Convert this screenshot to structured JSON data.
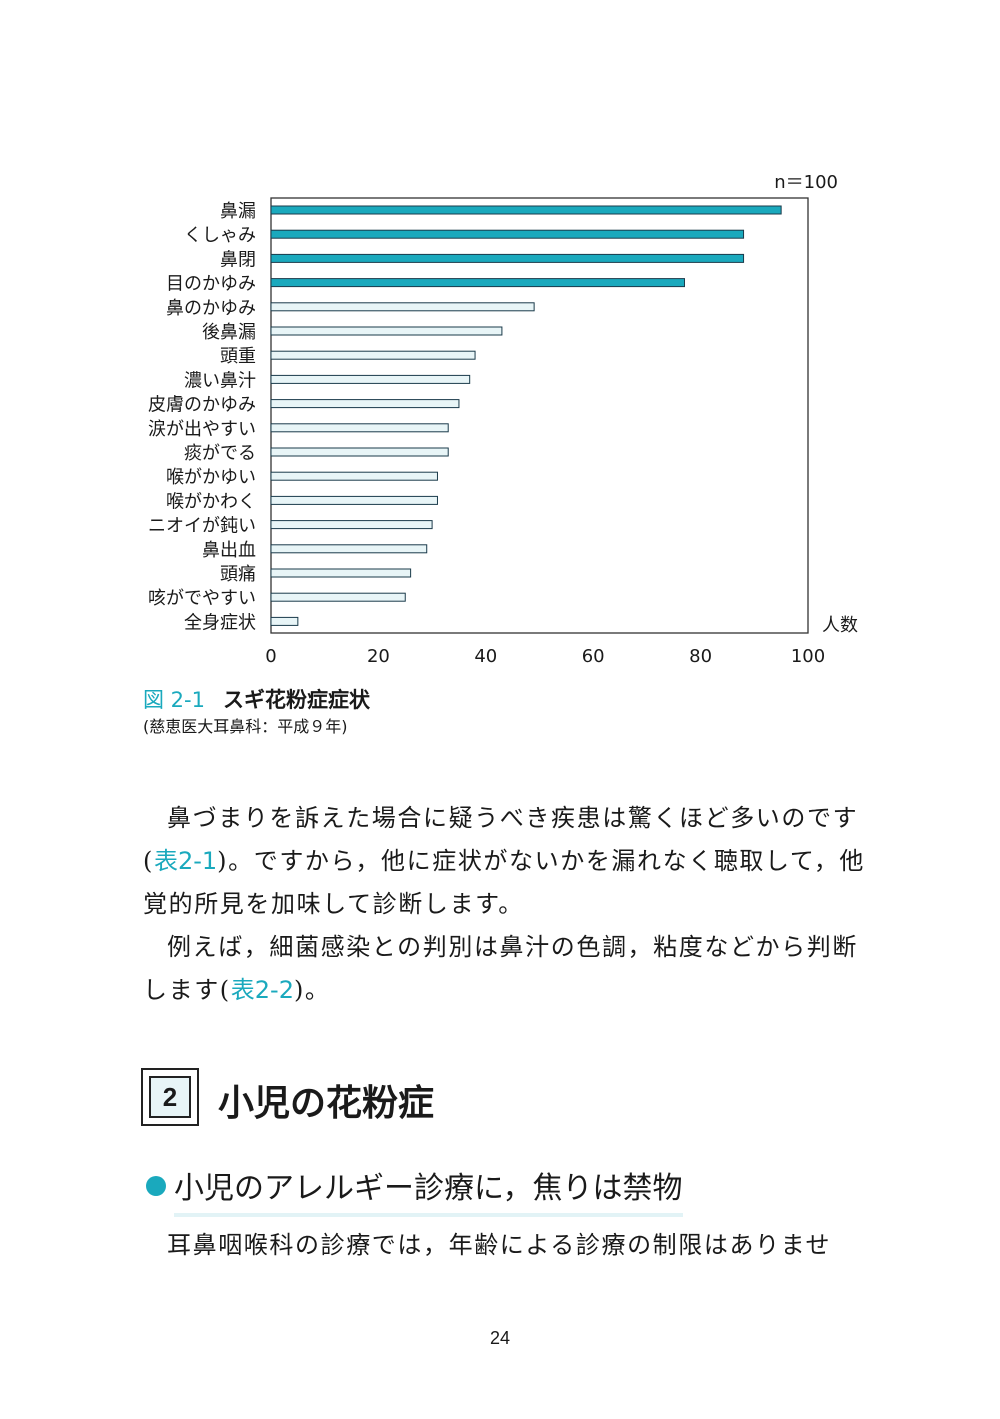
{
  "chart_data": {
    "type": "bar",
    "orientation": "horizontal",
    "note": "n＝100",
    "xlabel": "人数",
    "xlim": [
      0,
      100
    ],
    "xticks": [
      "0",
      "20",
      "40",
      "60",
      "80",
      "100"
    ],
    "categories": [
      "鼻漏",
      "くしゃみ",
      "鼻閉",
      "目のかゆみ",
      "鼻のかゆみ",
      "後鼻漏",
      "頭重",
      "濃い鼻汁",
      "皮膚のかゆみ",
      "涙が出やすい",
      "痰がでる",
      "喉がかゆい",
      "喉がかわく",
      "ニオイが鈍い",
      "鼻出血",
      "頭痛",
      "咳がでやすい",
      "全身症状"
    ],
    "values": [
      95,
      88,
      88,
      77,
      49,
      43,
      38,
      37,
      35,
      33,
      33,
      31,
      31,
      30,
      29,
      26,
      25,
      5
    ],
    "highlight_count": 4,
    "colors": {
      "highlight_fill": "#1aa9bd",
      "normal_fill": "#e8f5f7",
      "bar_stroke": "#1a3a4a",
      "frame": "#333333"
    },
    "grid": false
  },
  "caption": {
    "figure_number": "図 2-1",
    "title": "スギ花粉症症状",
    "source": "(慈恵医大耳鼻科：平成９年)"
  },
  "paragraphs": {
    "p1": {
      "line1": "鼻づまりを訴えた場合に疑うべき疾患は驚くほど多いのです",
      "line2_open": "(",
      "line2_ref": "表2-1",
      "line2_close": ")。ですから，他に症状がないかを漏れなく聴取して，他",
      "line3": "覚的所見を加味して診断します。"
    },
    "p2": {
      "line1": "例えば，細菌感染との判別は鼻汁の色調，粘度などから判断",
      "line2_start": "します(",
      "line2_ref": "表2-2",
      "line2_end": ")。"
    },
    "p3": "耳鼻咽喉科の診療では，年齢による診療の制限はありませ"
  },
  "section": {
    "number": "2",
    "title": "小児の花粉症"
  },
  "subheading": "小児のアレルギー診療に，焦りは禁物",
  "page_number": "24"
}
